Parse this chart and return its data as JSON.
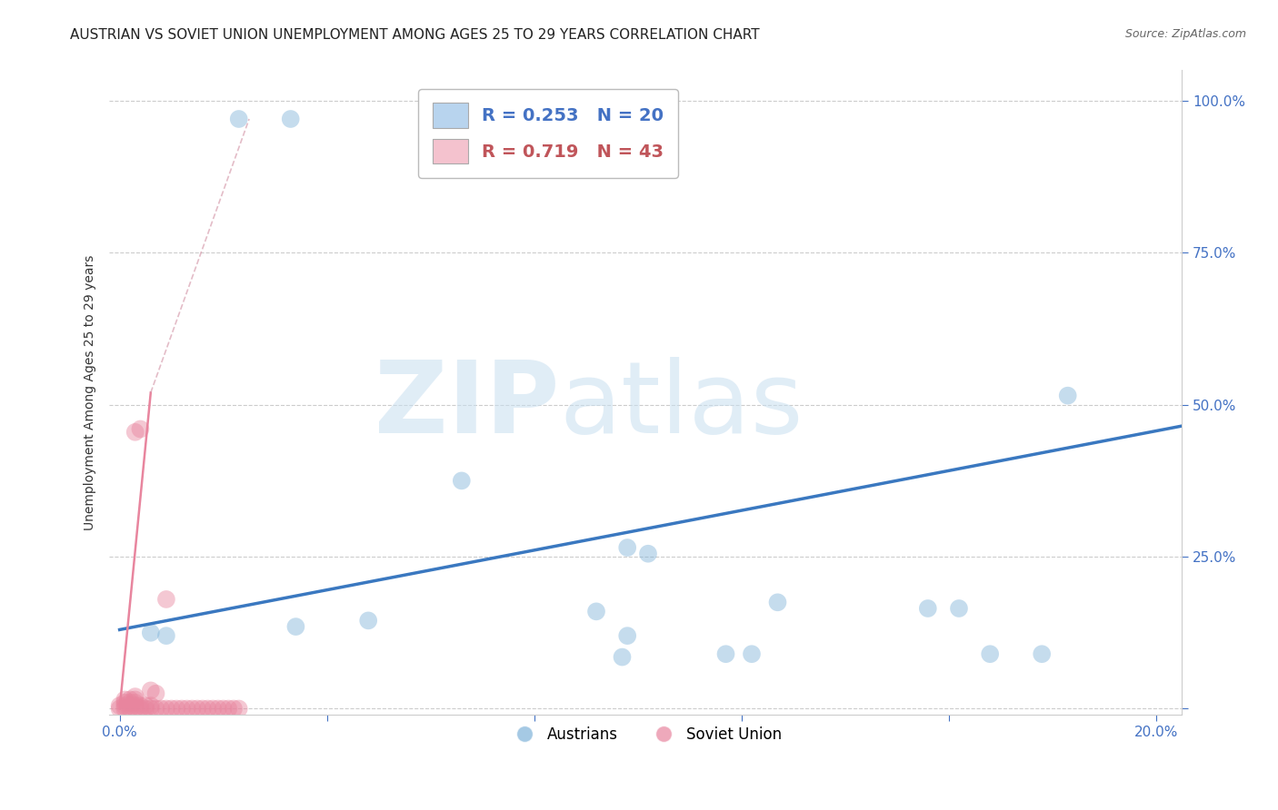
{
  "title": "AUSTRIAN VS SOVIET UNION UNEMPLOYMENT AMONG AGES 25 TO 29 YEARS CORRELATION CHART",
  "source": "Source: ZipAtlas.com",
  "ylabel": "Unemployment Among Ages 25 to 29 years",
  "xlim": [
    -0.002,
    0.205
  ],
  "ylim": [
    -0.01,
    1.05
  ],
  "xticks": [
    0.0,
    0.04,
    0.08,
    0.12,
    0.16,
    0.2
  ],
  "yticks": [
    0.0,
    0.25,
    0.5,
    0.75,
    1.0
  ],
  "xticklabels": [
    "0.0%",
    "",
    "",
    "",
    "",
    "20.0%"
  ],
  "yticklabels": [
    "",
    "25.0%",
    "50.0%",
    "75.0%",
    "100.0%"
  ],
  "legend_entries": [
    {
      "label": "R = 0.253   N = 20",
      "color": "#b8d4ee",
      "text_color": "#4472c4"
    },
    {
      "label": "R = 0.719   N = 43",
      "color": "#f4c2ce",
      "text_color": "#c0555a"
    }
  ],
  "background_color": "#ffffff",
  "grid_color": "#cccccc",
  "blue_color": "#7fb3d9",
  "pink_color": "#e8859e",
  "blue_scatter": [
    [
      0.023,
      0.97
    ],
    [
      0.033,
      0.97
    ],
    [
      0.066,
      0.375
    ],
    [
      0.098,
      0.265
    ],
    [
      0.102,
      0.255
    ],
    [
      0.127,
      0.175
    ],
    [
      0.156,
      0.165
    ],
    [
      0.162,
      0.165
    ],
    [
      0.034,
      0.135
    ],
    [
      0.048,
      0.145
    ],
    [
      0.006,
      0.125
    ],
    [
      0.009,
      0.12
    ],
    [
      0.178,
      0.09
    ],
    [
      0.168,
      0.09
    ],
    [
      0.092,
      0.16
    ],
    [
      0.117,
      0.09
    ],
    [
      0.122,
      0.09
    ],
    [
      0.098,
      0.12
    ],
    [
      0.183,
      0.515
    ],
    [
      0.097,
      0.085
    ]
  ],
  "pink_scatter": [
    [
      0.003,
      0.455
    ],
    [
      0.004,
      0.46
    ],
    [
      0.009,
      0.18
    ],
    [
      0.006,
      0.03
    ],
    [
      0.007,
      0.025
    ],
    [
      0.003,
      0.02
    ],
    [
      0.001,
      0.015
    ],
    [
      0.002,
      0.015
    ],
    [
      0.003,
      0.015
    ],
    [
      0.001,
      0.01
    ],
    [
      0.002,
      0.01
    ],
    [
      0.003,
      0.01
    ],
    [
      0.0,
      0.005
    ],
    [
      0.001,
      0.005
    ],
    [
      0.002,
      0.005
    ],
    [
      0.003,
      0.005
    ],
    [
      0.004,
      0.005
    ],
    [
      0.005,
      0.005
    ],
    [
      0.006,
      0.005
    ],
    [
      0.0,
      0.0
    ],
    [
      0.001,
      0.0
    ],
    [
      0.002,
      0.0
    ],
    [
      0.003,
      0.0
    ],
    [
      0.004,
      0.0
    ],
    [
      0.005,
      0.0
    ],
    [
      0.006,
      0.0
    ],
    [
      0.007,
      0.0
    ],
    [
      0.008,
      0.0
    ],
    [
      0.009,
      0.0
    ],
    [
      0.01,
      0.0
    ],
    [
      0.011,
      0.0
    ],
    [
      0.012,
      0.0
    ],
    [
      0.013,
      0.0
    ],
    [
      0.014,
      0.0
    ],
    [
      0.015,
      0.0
    ],
    [
      0.016,
      0.0
    ],
    [
      0.017,
      0.0
    ],
    [
      0.018,
      0.0
    ],
    [
      0.019,
      0.0
    ],
    [
      0.02,
      0.0
    ],
    [
      0.021,
      0.0
    ],
    [
      0.022,
      0.0
    ],
    [
      0.023,
      0.0
    ]
  ],
  "blue_trendline": {
    "x": [
      0.0,
      0.205
    ],
    "y": [
      0.13,
      0.465
    ]
  },
  "pink_trendline_solid": {
    "x": [
      0.0,
      0.006
    ],
    "y": [
      0.0,
      0.52
    ]
  },
  "pink_trendline_dashed": {
    "x": [
      0.006,
      0.025
    ],
    "y": [
      0.52,
      0.97
    ]
  },
  "title_fontsize": 11,
  "axis_label_fontsize": 10,
  "tick_fontsize": 11,
  "legend_fontsize": 14,
  "scatter_size": 200
}
